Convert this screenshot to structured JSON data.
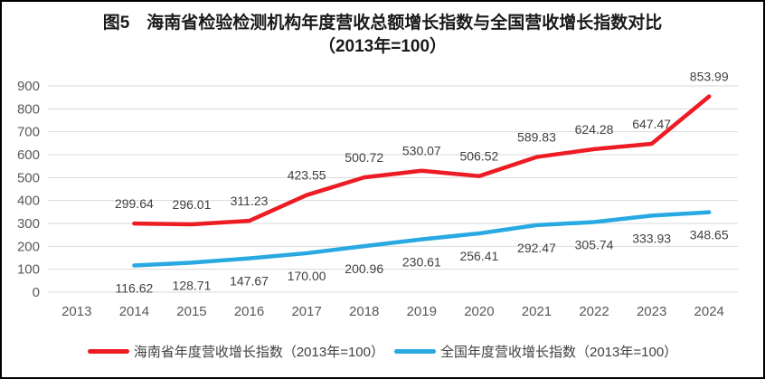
{
  "title": {
    "line1": "图5　海南省检验检测机构年度营收总额增长指数与全国营收增长指数对比",
    "line2": "（2013年=100）"
  },
  "chart_data": {
    "type": "line",
    "title": "图5 海南省检验检测机构年度营收总额增长指数与全国营收增长指数对比（2013年=100）",
    "xlabel": "",
    "ylabel": "",
    "categories": [
      "2013",
      "2014",
      "2015",
      "2016",
      "2017",
      "2018",
      "2019",
      "2020",
      "2021",
      "2022",
      "2023",
      "2024"
    ],
    "series": [
      {
        "name": "海南省年度营收增长指数（2013年=100）",
        "color": "#ED1C24",
        "label_position": "above",
        "values": [
          null,
          299.64,
          296.01,
          311.23,
          423.55,
          500.72,
          530.07,
          506.52,
          589.83,
          624.28,
          647.47,
          853.99
        ]
      },
      {
        "name": "全国年度营收增长指数（2013年=100）",
        "color": "#29A9E1",
        "label_position": "below",
        "values": [
          null,
          116.62,
          128.71,
          147.67,
          170.0,
          200.96,
          230.61,
          256.41,
          292.47,
          305.74,
          333.93,
          348.65
        ]
      }
    ],
    "ylim": [
      0,
      900
    ],
    "y_ticks": [
      0,
      100,
      200,
      300,
      400,
      500,
      600,
      700,
      800,
      900
    ],
    "grid": true,
    "legend_position": "bottom",
    "colors": {
      "grid": "#D9D9D9",
      "axis_text": "#595959",
      "label_text": "#404040"
    }
  }
}
